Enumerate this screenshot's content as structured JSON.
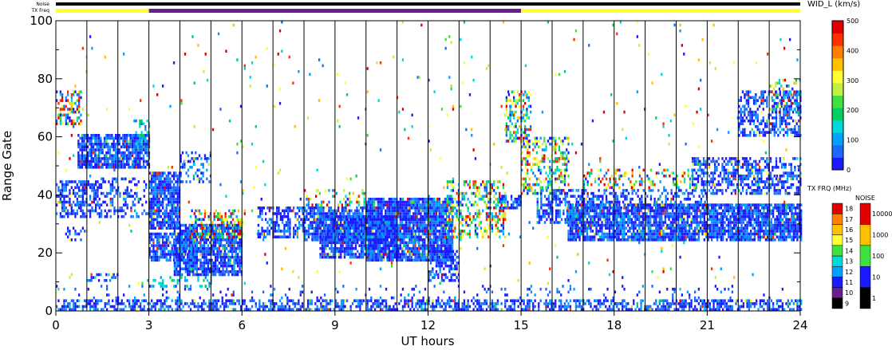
{
  "chart_data": {
    "type": "heatmap",
    "xlabel": "UT hours",
    "ylabel": "Range Gate",
    "xlim": [
      0,
      24
    ],
    "ylim": [
      0,
      100
    ],
    "x_ticks": [
      "0",
      "3",
      "6",
      "9",
      "12",
      "15",
      "18",
      "21",
      "24"
    ],
    "x_minor_step": 1,
    "y_ticks": [
      "0",
      "20",
      "40",
      "60",
      "80",
      "100"
    ],
    "grid": "vertical lines every hour",
    "top_bars": {
      "noise_label": "Noise",
      "txfreq_label": "TX Freq",
      "noise_color": "#000000",
      "txfreq_segments": [
        {
          "start": 0,
          "end": 3,
          "color": "#ffff33"
        },
        {
          "start": 3,
          "end": 15,
          "color": "#6a1f8f"
        },
        {
          "start": 15,
          "end": 24,
          "color": "#ffff33"
        }
      ]
    },
    "main_colorbar": {
      "label": "WID_L (km/s)",
      "ticks": [
        "0",
        "100",
        "200",
        "300",
        "400",
        "500"
      ],
      "min": 0,
      "max": 500,
      "colors": [
        "#1a1aff",
        "#1a6aff",
        "#00a0ff",
        "#00d8d8",
        "#00d060",
        "#40e040",
        "#c0f040",
        "#ffff33",
        "#ffc000",
        "#ff8000",
        "#ff3000",
        "#e00000"
      ]
    },
    "freq_colorbar": {
      "label": "TX FRQ (MHz)",
      "ticks": [
        "9",
        "10",
        "11",
        "12",
        "13",
        "14",
        "15",
        "16",
        "17",
        "18"
      ],
      "colors": [
        "#000000",
        "#6a1f8f",
        "#1a1aff",
        "#00a0ff",
        "#00d8d8",
        "#40e040",
        "#ffff33",
        "#ffc000",
        "#ff8000",
        "#e00000"
      ]
    },
    "noise_colorbar": {
      "label": "NOISE",
      "ticks": [
        "1",
        "10",
        "100",
        "1000",
        "10000"
      ],
      "colors": [
        "#000000",
        "#1a1aff",
        "#40e040",
        "#ffc000",
        "#e00000"
      ]
    },
    "blobs": [
      {
        "t0": 0.0,
        "t1": 24.0,
        "g0": 0,
        "g1": 4,
        "density": 0.6,
        "base": "blue"
      },
      {
        "t0": 0.0,
        "t1": 24.0,
        "g0": 4,
        "g1": 9,
        "density": 0.07,
        "base": "blue"
      },
      {
        "t0": 0.0,
        "t1": 0.8,
        "g0": 64,
        "g1": 76,
        "density": 0.45,
        "base": "mixed"
      },
      {
        "t0": 0.0,
        "t1": 1.5,
        "g0": 32,
        "g1": 45,
        "density": 0.55,
        "base": "blue"
      },
      {
        "t0": 1.5,
        "t1": 3.0,
        "g0": 32,
        "g1": 46,
        "density": 0.35,
        "base": "blue"
      },
      {
        "t0": 0.7,
        "t1": 3.0,
        "g0": 49,
        "g1": 61,
        "density": 0.85,
        "base": "blue"
      },
      {
        "t0": 2.5,
        "t1": 3.0,
        "g0": 56,
        "g1": 66,
        "density": 0.4,
        "base": "cyan"
      },
      {
        "t0": 1.0,
        "t1": 2.0,
        "g0": 10,
        "g1": 13,
        "density": 0.4,
        "base": "blue"
      },
      {
        "t0": 0.3,
        "t1": 1.0,
        "g0": 24,
        "g1": 30,
        "density": 0.25,
        "base": "blue"
      },
      {
        "t0": 3.0,
        "t1": 4.0,
        "g0": 28,
        "g1": 48,
        "density": 0.85,
        "base": "blue"
      },
      {
        "t0": 3.0,
        "t1": 4.5,
        "g0": 17,
        "g1": 27,
        "density": 0.7,
        "base": "blue"
      },
      {
        "t0": 3.8,
        "t1": 6.0,
        "g0": 12,
        "g1": 30,
        "density": 0.85,
        "base": "blue"
      },
      {
        "t0": 4.0,
        "t1": 5.0,
        "g0": 44,
        "g1": 55,
        "density": 0.35,
        "base": "blue"
      },
      {
        "t0": 4.3,
        "t1": 6.0,
        "g0": 25,
        "g1": 35,
        "density": 0.5,
        "base": "mixed"
      },
      {
        "t0": 3.0,
        "t1": 5.0,
        "g0": 8,
        "g1": 12,
        "density": 0.3,
        "base": "cyan"
      },
      {
        "t0": 6.5,
        "t1": 8.0,
        "g0": 25,
        "g1": 36,
        "density": 0.55,
        "base": "blue"
      },
      {
        "t0": 8.0,
        "t1": 10.0,
        "g0": 24,
        "g1": 36,
        "density": 0.75,
        "base": "blue"
      },
      {
        "t0": 8.5,
        "t1": 11.0,
        "g0": 18,
        "g1": 33,
        "density": 0.85,
        "base": "blue"
      },
      {
        "t0": 10.0,
        "t1": 12.8,
        "g0": 17,
        "g1": 39,
        "density": 0.9,
        "base": "blue"
      },
      {
        "t0": 12.0,
        "t1": 13.0,
        "g0": 10,
        "g1": 22,
        "density": 0.5,
        "base": "blue"
      },
      {
        "t0": 8.0,
        "t1": 10.0,
        "g0": 36,
        "g1": 42,
        "density": 0.3,
        "base": "mixed"
      },
      {
        "t0": 12.6,
        "t1": 14.5,
        "g0": 25,
        "g1": 45,
        "density": 0.45,
        "base": "mixed"
      },
      {
        "t0": 14.3,
        "t1": 15.0,
        "g0": 35,
        "g1": 40,
        "density": 0.6,
        "base": "blue"
      },
      {
        "t0": 14.5,
        "t1": 15.3,
        "g0": 58,
        "g1": 76,
        "density": 0.5,
        "base": "mixed"
      },
      {
        "t0": 15.0,
        "t1": 16.5,
        "g0": 40,
        "g1": 60,
        "density": 0.45,
        "base": "mixed"
      },
      {
        "t0": 15.5,
        "t1": 17.0,
        "g0": 30,
        "g1": 42,
        "density": 0.6,
        "base": "blue"
      },
      {
        "t0": 16.5,
        "t1": 24.0,
        "g0": 24,
        "g1": 37,
        "density": 0.85,
        "base": "blue"
      },
      {
        "t0": 17.0,
        "t1": 21.0,
        "g0": 35,
        "g1": 42,
        "density": 0.45,
        "base": "blue"
      },
      {
        "t0": 20.5,
        "t1": 24.0,
        "g0": 40,
        "g1": 53,
        "density": 0.55,
        "base": "blue"
      },
      {
        "t0": 17.0,
        "t1": 20.5,
        "g0": 42,
        "g1": 49,
        "density": 0.3,
        "base": "mixed"
      },
      {
        "t0": 22.0,
        "t1": 24.0,
        "g0": 60,
        "g1": 76,
        "density": 0.5,
        "base": "blue"
      },
      {
        "t0": 23.0,
        "t1": 24.0,
        "g0": 68,
        "g1": 80,
        "density": 0.3,
        "base": "mixed"
      },
      {
        "t0": 0.0,
        "t1": 24.0,
        "g0": 8,
        "g1": 100,
        "density": 0.012,
        "base": "mixed"
      }
    ]
  }
}
